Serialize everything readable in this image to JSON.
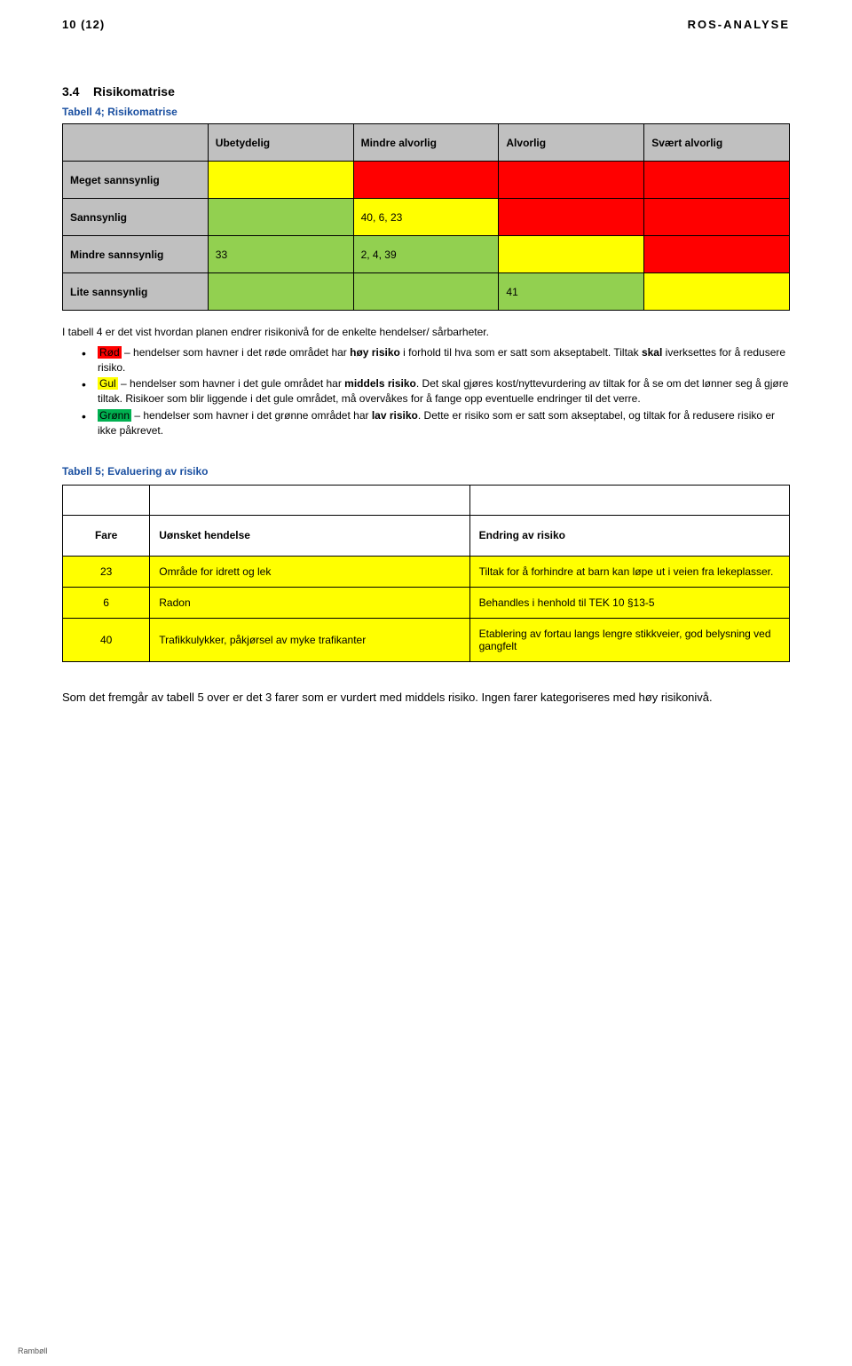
{
  "header": {
    "page_left": "10 (12)",
    "page_right": "ROS-ANALYSE"
  },
  "section": {
    "number": "3.4",
    "title": "Risikomatrise"
  },
  "table4": {
    "caption": "Tabell 4; Risikomatrise",
    "columns": [
      "",
      "Ubetydelig",
      "Mindre alvorlig",
      "Alvorlig",
      "Svært alvorlig"
    ],
    "rows": [
      {
        "label": "Meget sannsynlig",
        "cells": [
          "",
          "",
          "",
          ""
        ],
        "colors": [
          "yellow",
          "red",
          "red",
          "red"
        ]
      },
      {
        "label": "Sannsynlig",
        "cells": [
          "",
          "40, 6, 23",
          "",
          ""
        ],
        "colors": [
          "green",
          "yellow",
          "red",
          "red"
        ]
      },
      {
        "label": "Mindre sannsynlig",
        "cells": [
          "33",
          "2, 4, 39",
          "",
          ""
        ],
        "colors": [
          "green",
          "green",
          "yellow",
          "red"
        ]
      },
      {
        "label": "Lite sannsynlig",
        "cells": [
          "",
          "",
          "41",
          ""
        ],
        "colors": [
          "green",
          "green",
          "green",
          "yellow"
        ]
      }
    ]
  },
  "intro": "I tabell 4 er det vist hvordan planen endrer risikonivå for de enkelte hendelser/ sårbarheter.",
  "bullets": {
    "red": {
      "label": "Rød",
      "text": " – hendelser som havner i det røde området har ",
      "bold1": "høy risiko",
      "text2": " i forhold til hva som er satt som akseptabelt. Tiltak ",
      "bold2": "skal",
      "text3": " iverksettes for å redusere risiko."
    },
    "yellow": {
      "label": "Gul",
      "text": " – hendelser som havner i det gule området har ",
      "bold1": "middels risiko",
      "text2": ". Det skal gjøres kost/nyttevurdering av tiltak for å se om det lønner seg å gjøre tiltak. Risikoer som blir liggende i det gule området, må overvåkes for å fange opp eventuelle endringer til det verre."
    },
    "green": {
      "label": "Grønn",
      "text": " – hendelser som havner i det grønne området har ",
      "bold1": "lav risiko",
      "text2": ". Dette er risiko som er satt som akseptabel, og tiltak for å redusere risiko er ikke påkrevet."
    }
  },
  "table5": {
    "caption": "Tabell 5; Evaluering av risiko",
    "columns": [
      "Fare",
      "Uønsket hendelse",
      "Endring av risiko"
    ],
    "rows": [
      {
        "fare": "23",
        "hendelse": "Område for idrett og lek",
        "endring": "Tiltak for å forhindre at barn kan løpe ut i veien fra lekeplasser.",
        "color": "yellow"
      },
      {
        "fare": "6",
        "hendelse": "Radon",
        "endring": "Behandles i henhold til TEK 10 §13-5",
        "color": "yellow"
      },
      {
        "fare": "40",
        "hendelse": "Trafikkulykker, påkjørsel av myke trafikanter",
        "endring": "Etablering av fortau langs lengre stikkveier, god belysning ved gangfelt",
        "color": "yellow"
      }
    ]
  },
  "closing": "Som det fremgår av tabell 5 over er det 3 farer som er vurdert med middels risiko. Ingen farer kategoriseres med høy risikonivå.",
  "footer": "Rambøll"
}
